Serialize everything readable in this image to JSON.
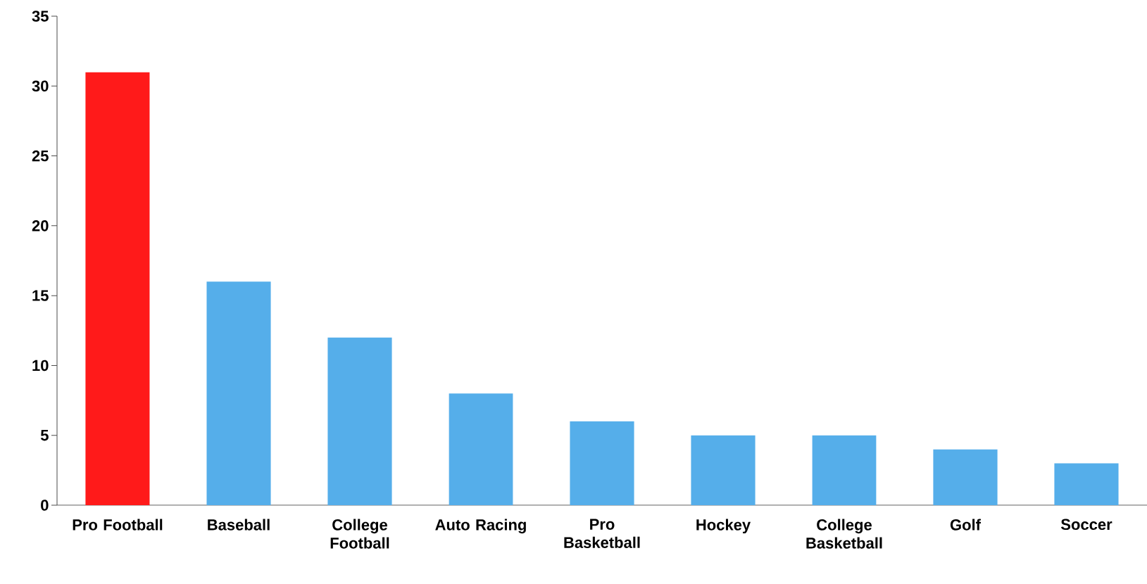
{
  "chart_data": {
    "type": "bar",
    "categories": [
      "Pro Football",
      "Baseball",
      "College Football",
      "Auto Racing",
      "Pro Basketball",
      "Hockey",
      "College Basketball",
      "Golf",
      "Soccer"
    ],
    "values": [
      31,
      16,
      12,
      8,
      6,
      5,
      5,
      4,
      3
    ],
    "colors": [
      "#ff1a1a",
      "#55aeea",
      "#55aeea",
      "#55aeea",
      "#55aeea",
      "#55aeea",
      "#55aeea",
      "#55aeea",
      "#55aeea"
    ],
    "ylim": [
      0,
      35
    ],
    "yticks": [
      0,
      5,
      10,
      15,
      20,
      25,
      30,
      35
    ]
  }
}
